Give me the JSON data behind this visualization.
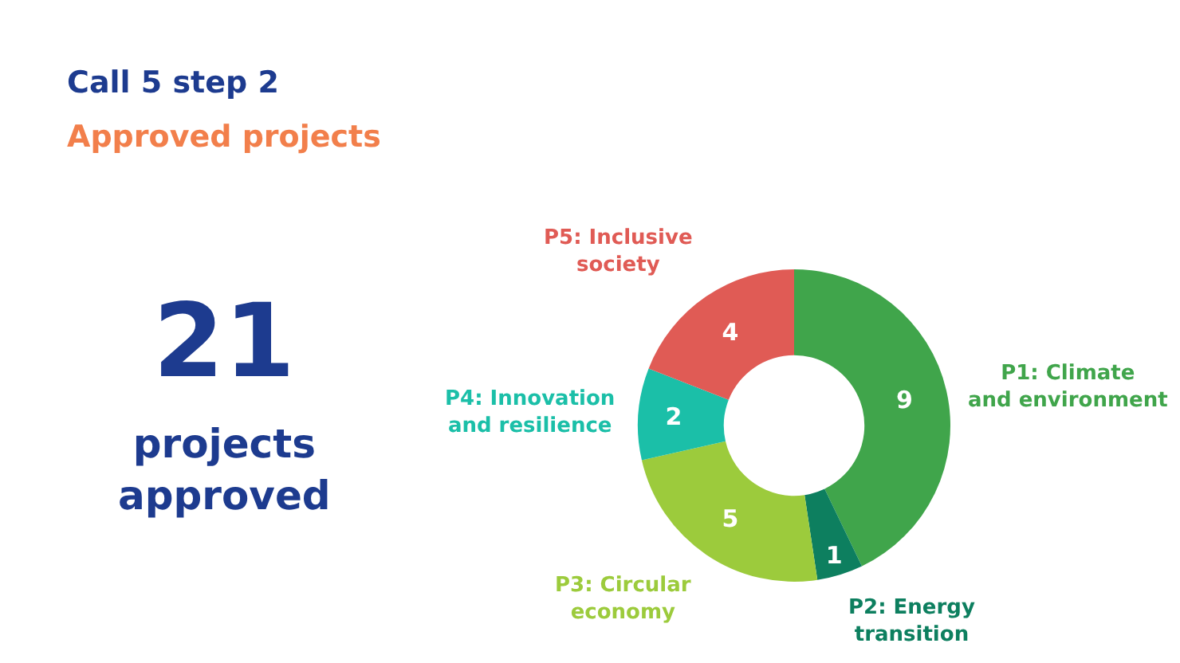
{
  "chart_data": {
    "type": "donut",
    "title": "Call 5 step 2",
    "subtitle": "Approved projects",
    "categories": [
      "P1: Climate and environment",
      "P2: Energy transition",
      "P3: Circular economy",
      "P4: Innovation and resilience",
      "P5: Inclusive society"
    ],
    "values": [
      9,
      1,
      5,
      2,
      4
    ],
    "colors": [
      "#40a54b",
      "#0d7f5f",
      "#9ccb3c",
      "#1bbfa8",
      "#e05b55"
    ],
    "data_labels": true,
    "legend": false,
    "annotations": [
      "21",
      "projects\napproved"
    ]
  }
}
